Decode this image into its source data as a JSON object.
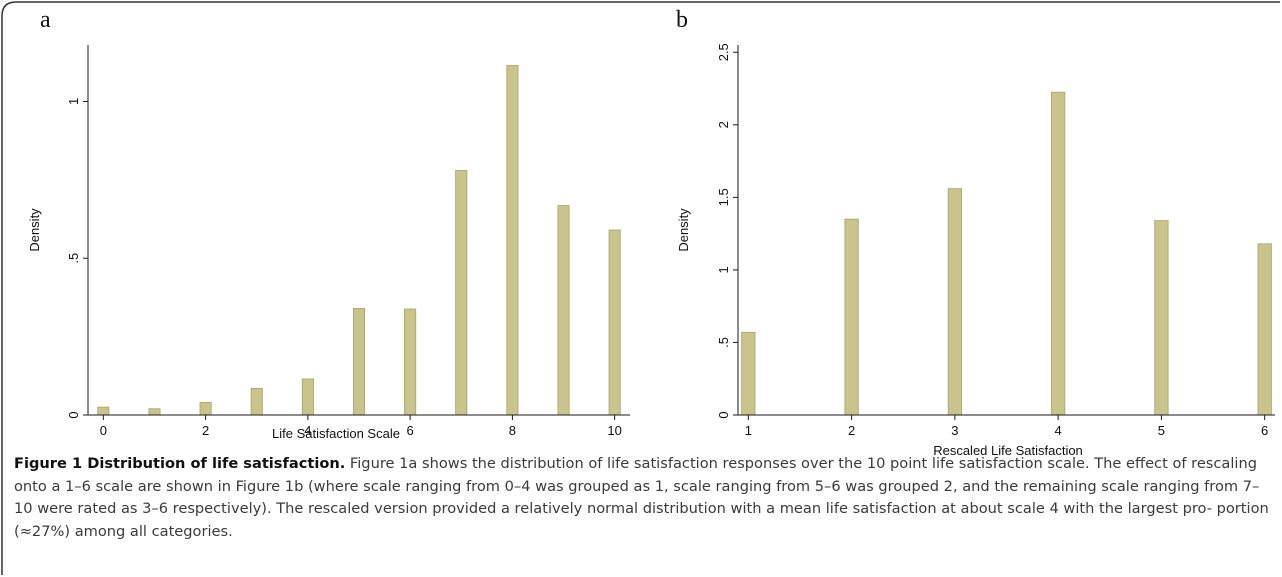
{
  "caption": {
    "title": "Figure 1 Distribution of life satisfaction.",
    "text": "Figure 1a shows the distribution of life satisfaction responses over the 10 point life satisfaction scale. The effect of rescaling onto a 1–6 scale are shown in Figure 1b (where scale ranging from 0–4 was grouped as 1, scale ranging from 5–6 was grouped 2, and the remaining scale ranging from 7–10 were rated as 3–6 respectively). The rescaled version provided a relatively normal distribution with a mean life satisfaction at about scale 4 with the largest pro- portion (≈27%) among all categories."
  },
  "colors": {
    "bar_fill": "#c9c48c",
    "bar_edge": "#a6a26a",
    "axis": "#1a1a1a",
    "frame": "#333333"
  },
  "chart_data": [
    {
      "panel": "a",
      "type": "bar",
      "title": "",
      "xlabel": "Life Satisfaction Scale",
      "ylabel": "Density",
      "x": [
        0,
        1,
        2,
        3,
        4,
        5,
        6,
        7,
        8,
        9,
        10
      ],
      "values": [
        0.025,
        0.02,
        0.04,
        0.085,
        0.115,
        0.34,
        0.338,
        0.78,
        1.115,
        0.668,
        0.59
      ],
      "xlim": [
        -0.3,
        10.3
      ],
      "ylim": [
        0,
        1.18
      ],
      "xticks": [
        0,
        2,
        4,
        6,
        8,
        10
      ],
      "xtick_labels": [
        "0",
        "2",
        "4",
        "6",
        "8",
        "10"
      ],
      "yticks": [
        0,
        0.5,
        1
      ],
      "ytick_labels": [
        "0",
        ".5",
        "1"
      ],
      "bar_width": 0.22,
      "grid": false,
      "legend": "none"
    },
    {
      "panel": "b",
      "type": "bar",
      "title": "",
      "xlabel": "Rescaled Life Satisfaction",
      "ylabel": "Density",
      "x": [
        1,
        2,
        3,
        4,
        5,
        6
      ],
      "values": [
        0.57,
        1.35,
        1.56,
        2.225,
        1.34,
        1.18
      ],
      "xlim": [
        0.9,
        6.1
      ],
      "ylim": [
        0,
        2.55
      ],
      "xticks": [
        1,
        2,
        3,
        4,
        5,
        6
      ],
      "xtick_labels": [
        "1",
        "2",
        "3",
        "4",
        "5",
        "6"
      ],
      "yticks": [
        0,
        0.5,
        1,
        1.5,
        2,
        2.5
      ],
      "ytick_labels": [
        "0",
        ".5",
        "1",
        "1.5",
        "2",
        "2.5"
      ],
      "bar_width": 0.13,
      "grid": false,
      "legend": "none"
    }
  ]
}
